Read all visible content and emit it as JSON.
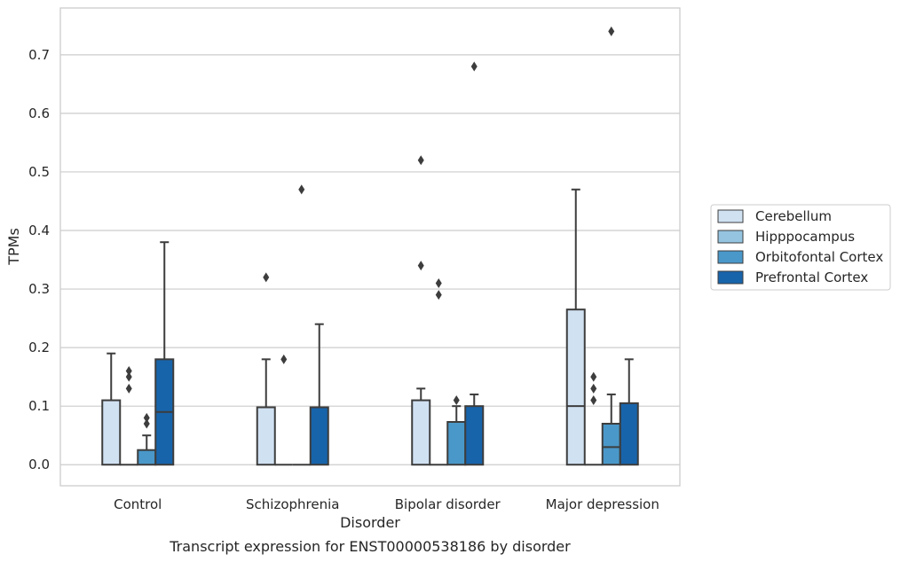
{
  "chart_data": {
    "type": "boxplot",
    "caption": "Transcript expression for ENST00000538186 by disorder",
    "xlabel": "Disorder",
    "ylabel": "TPMs",
    "ylim": [
      -0.036,
      0.78
    ],
    "yticks": [
      0.0,
      0.1,
      0.2,
      0.3,
      0.4,
      0.5,
      0.6,
      0.7
    ],
    "ytick_labels": [
      "0.0",
      "0.1",
      "0.2",
      "0.3",
      "0.4",
      "0.5",
      "0.6",
      "0.7"
    ],
    "grid": true,
    "legend_position": "right",
    "categories": [
      "Control",
      "Schizophrenia",
      "Bipolar disorder",
      "Major depression"
    ],
    "series": [
      {
        "name": "Cerebellum",
        "color": "#d0e1f2",
        "boxes": [
          {
            "q1": 0.0,
            "median": 0.0,
            "q3": 0.11,
            "whisker_low": 0.0,
            "whisker_high": 0.19,
            "outliers": []
          },
          {
            "q1": 0.0,
            "median": 0.0,
            "q3": 0.098,
            "whisker_low": 0.0,
            "whisker_high": 0.18,
            "outliers": [
              0.32
            ]
          },
          {
            "q1": 0.0,
            "median": 0.0,
            "q3": 0.11,
            "whisker_low": 0.0,
            "whisker_high": 0.13,
            "outliers": [
              0.34,
              0.52
            ]
          },
          {
            "q1": 0.0,
            "median": 0.1,
            "q3": 0.265,
            "whisker_low": 0.0,
            "whisker_high": 0.47,
            "outliers": []
          }
        ]
      },
      {
        "name": "Hipppocampus",
        "color": "#94c4df",
        "boxes": [
          {
            "q1": 0.0,
            "median": 0.0,
            "q3": 0.0,
            "whisker_low": 0.0,
            "whisker_high": 0.0,
            "outliers": [
              0.13,
              0.15,
              0.16
            ]
          },
          {
            "q1": 0.0,
            "median": 0.0,
            "q3": 0.0,
            "whisker_low": 0.0,
            "whisker_high": 0.0,
            "outliers": [
              0.18
            ]
          },
          {
            "q1": 0.0,
            "median": 0.0,
            "q3": 0.0,
            "whisker_low": 0.0,
            "whisker_high": 0.0,
            "outliers": [
              0.29,
              0.31
            ]
          },
          {
            "q1": 0.0,
            "median": 0.0,
            "q3": 0.0,
            "whisker_low": 0.0,
            "whisker_high": 0.0,
            "outliers": [
              0.11,
              0.13,
              0.15
            ]
          }
        ]
      },
      {
        "name": "Orbitofontal Cortex",
        "color": "#4a98c9",
        "boxes": [
          {
            "q1": 0.0,
            "median": 0.0,
            "q3": 0.025,
            "whisker_low": 0.0,
            "whisker_high": 0.05,
            "outliers": [
              0.07,
              0.08
            ]
          },
          {
            "q1": 0.0,
            "median": 0.0,
            "q3": 0.0,
            "whisker_low": 0.0,
            "whisker_high": 0.0,
            "outliers": [
              0.47
            ]
          },
          {
            "q1": 0.0,
            "median": 0.0,
            "q3": 0.073,
            "whisker_low": 0.0,
            "whisker_high": 0.1,
            "outliers": [
              0.11
            ]
          },
          {
            "q1": 0.0,
            "median": 0.03,
            "q3": 0.07,
            "whisker_low": 0.0,
            "whisker_high": 0.12,
            "outliers": [
              0.74
            ]
          }
        ]
      },
      {
        "name": "Prefrontal Cortex",
        "color": "#1764ab",
        "boxes": [
          {
            "q1": 0.0,
            "median": 0.09,
            "q3": 0.18,
            "whisker_low": 0.0,
            "whisker_high": 0.38,
            "outliers": []
          },
          {
            "q1": 0.0,
            "median": 0.0,
            "q3": 0.098,
            "whisker_low": 0.0,
            "whisker_high": 0.24,
            "outliers": []
          },
          {
            "q1": 0.0,
            "median": 0.0,
            "q3": 0.1,
            "whisker_low": 0.0,
            "whisker_high": 0.12,
            "outliers": [
              0.68
            ]
          },
          {
            "q1": 0.0,
            "median": 0.0,
            "q3": 0.105,
            "whisker_low": 0.0,
            "whisker_high": 0.18,
            "outliers": []
          }
        ]
      }
    ]
  }
}
